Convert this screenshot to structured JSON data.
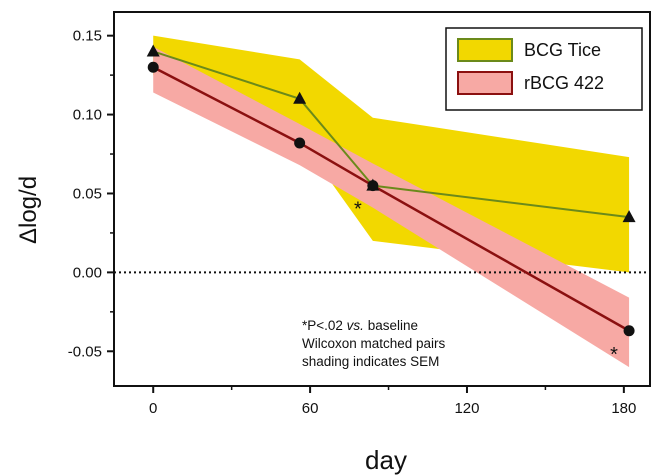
{
  "chart_data": {
    "type": "line",
    "xlabel": "day",
    "ylabel": "Δlog/d",
    "xlim": [
      -15,
      190
    ],
    "ylim": [
      -0.072,
      0.165
    ],
    "x_ticks": [
      0,
      60,
      120,
      180
    ],
    "x_tick_labels": [
      "0",
      "60",
      "120",
      "180"
    ],
    "y_ticks": [
      -0.05,
      0.0,
      0.05,
      0.1,
      0.15
    ],
    "y_tick_labels": [
      "-0.05",
      "0.00",
      "0.05",
      "0.10",
      "0.15"
    ],
    "reference_line": {
      "y": 0,
      "style": "dotted"
    },
    "legend_position": "top-right",
    "series": [
      {
        "name": "BCG Tice",
        "marker": "triangle",
        "line_color": "#6b8a1a",
        "band_color": "#f2d800",
        "x": [
          0,
          56,
          84,
          182
        ],
        "y": [
          0.14,
          0.11,
          0.055,
          0.035
        ],
        "band_upper": [
          0.15,
          0.135,
          0.098,
          0.073
        ],
        "band_lower": [
          0.125,
          0.085,
          0.02,
          0.0
        ]
      },
      {
        "name": "rBCG 422",
        "marker": "circle",
        "line_color": "#8b1010",
        "band_color": "#f7a9a4",
        "x": [
          0,
          56,
          84,
          182
        ],
        "y": [
          0.13,
          0.082,
          0.055,
          -0.037
        ],
        "band_upper": [
          0.143,
          0.094,
          0.069,
          -0.016
        ],
        "band_lower": [
          0.114,
          0.068,
          0.041,
          -0.06
        ]
      }
    ],
    "significance_markers": [
      {
        "label": "*",
        "x": 84,
        "y": 0.055,
        "series": "rBCG 422"
      },
      {
        "label": "*",
        "x": 182,
        "y": -0.037,
        "series": "rBCG 422"
      }
    ],
    "annotation_lines": [
      "*P<.02 vs. baseline",
      "Wilcoxon matched pairs",
      "shading indicates SEM"
    ]
  }
}
